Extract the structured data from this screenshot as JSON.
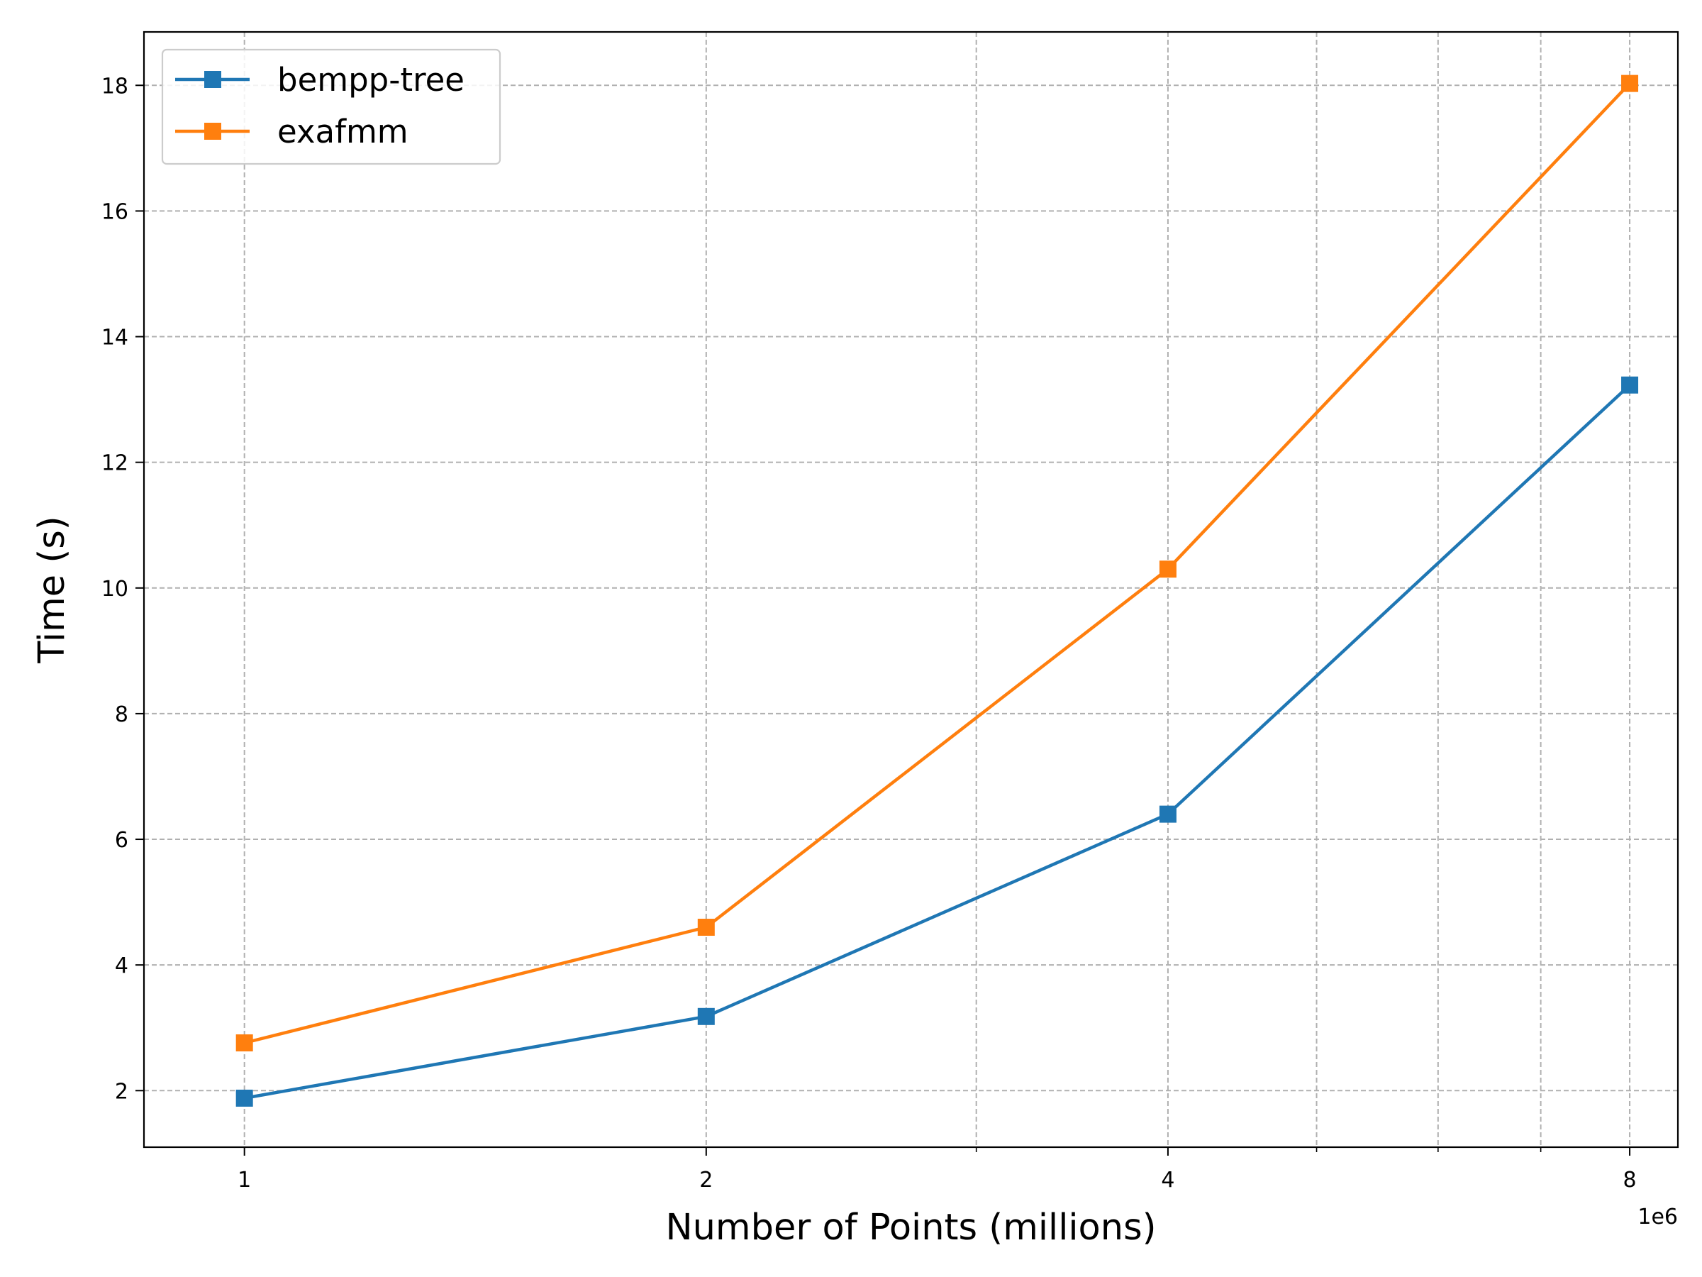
{
  "chart_data": {
    "type": "line",
    "xscale": "log2",
    "xlabel": "Number of Points (millions)",
    "ylabel": "Time (s)",
    "x_offset_label": "1e6",
    "x_tick_labels": [
      "1",
      "2",
      "4",
      "8"
    ],
    "x_ticks": [
      1000000,
      2000000,
      4000000,
      8000000
    ],
    "x_minor_ticks": [
      3000000,
      5000000,
      6000000,
      7000000
    ],
    "xlim": [
      860000,
      8600000
    ],
    "ylim": [
      1.1,
      18.85
    ],
    "y_ticks": [
      2,
      4,
      6,
      8,
      10,
      12,
      14,
      16,
      18
    ],
    "y_tick_labels": [
      "2",
      "4",
      "6",
      "8",
      "10",
      "12",
      "14",
      "16",
      "18"
    ],
    "grid": true,
    "legend_position": "top-left",
    "x": [
      1000000,
      2000000,
      4000000,
      8000000
    ],
    "series": [
      {
        "name": "bempp-tree",
        "color": "#1f77b4",
        "marker": "square",
        "values": [
          1.88,
          3.18,
          6.4,
          13.23
        ]
      },
      {
        "name": "exafmm",
        "color": "#ff7f0e",
        "marker": "square",
        "values": [
          2.76,
          4.6,
          10.3,
          18.03
        ]
      }
    ]
  }
}
